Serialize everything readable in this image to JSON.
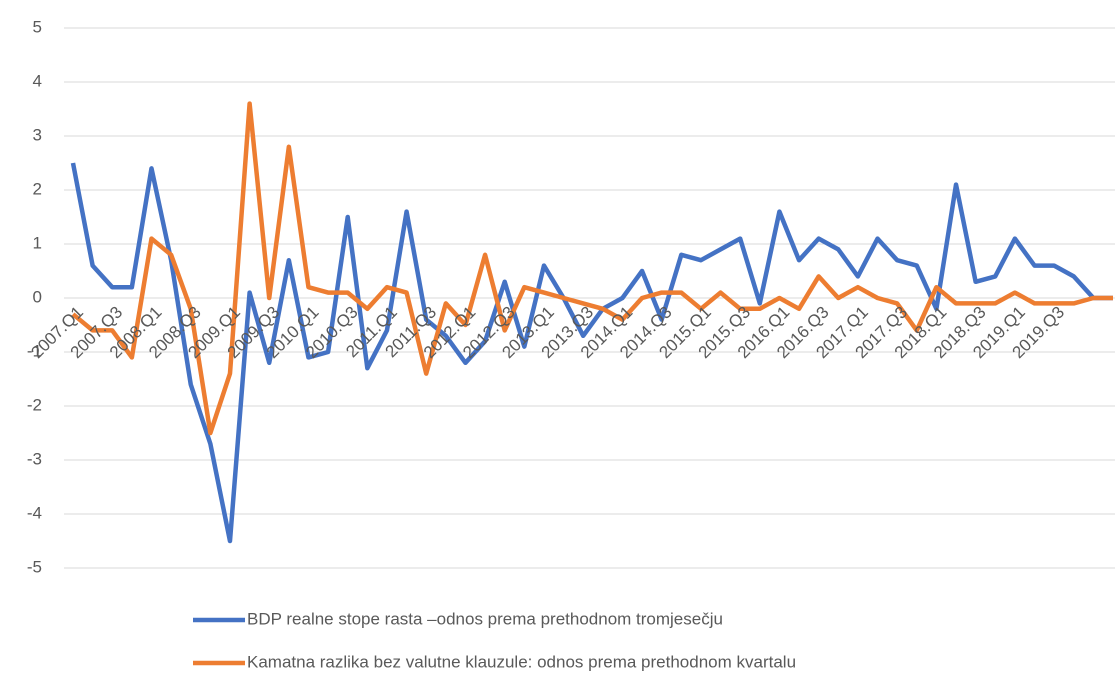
{
  "chart_data": {
    "type": "line",
    "categories": [
      "2007.Q1",
      null,
      "2007.Q3",
      null,
      "2008.Q1",
      null,
      "2008.Q3",
      null,
      "2009.Q1",
      null,
      "2009.Q3",
      null,
      "2010.Q1",
      null,
      "2010.Q3",
      null,
      "2011.Q1",
      null,
      "2011.Q3",
      null,
      "2012.Q1",
      null,
      "2012.Q3",
      null,
      "2013.Q1",
      null,
      "2013.Q3",
      null,
      "2014.Q1",
      null,
      "2014.Q3",
      null,
      "2015.Q1",
      null,
      "2015.Q3",
      null,
      "2016.Q1",
      null,
      "2016.Q3",
      null,
      "2017.Q1",
      null,
      "2017.Q3",
      null,
      "2018.Q1",
      null,
      "2018.Q3",
      null,
      "2019.Q1",
      null,
      "2019.Q3",
      null,
      null,
      null
    ],
    "series": [
      {
        "name": "BDP realne stope rasta –odnos prema prethodnom tromjesečju",
        "color": "#4472c4",
        "values": [
          2.5,
          0.6,
          0.2,
          0.2,
          2.4,
          0.7,
          -1.6,
          -2.7,
          -4.5,
          0.1,
          -1.2,
          0.7,
          -1.1,
          -1.0,
          1.5,
          -1.3,
          -0.6,
          1.6,
          -0.4,
          -0.7,
          -1.2,
          -0.8,
          0.3,
          -0.9,
          0.6,
          0.0,
          -0.7,
          -0.2,
          0.0,
          0.5,
          -0.4,
          0.8,
          0.7,
          0.9,
          1.1,
          -0.1,
          1.6,
          0.7,
          1.1,
          0.9,
          0.4,
          1.1,
          0.7,
          0.6,
          -0.2,
          2.1,
          0.3,
          0.4,
          1.1,
          0.6,
          0.6,
          0.4,
          0.0,
          0.0
        ]
      },
      {
        "name": "Kamatna razlika bez valutne klauzule: odnos prema prethodnom kvartalu",
        "color": "#ed7d31",
        "values": [
          -0.3,
          -0.6,
          -0.6,
          -1.1,
          1.1,
          0.8,
          -0.2,
          -2.5,
          -1.4,
          3.6,
          0.0,
          2.8,
          0.2,
          0.1,
          0.1,
          -0.2,
          0.2,
          0.1,
          -1.4,
          -0.1,
          -0.5,
          0.8,
          -0.6,
          0.2,
          0.1,
          0.0,
          -0.1,
          -0.2,
          -0.4,
          0.0,
          0.1,
          0.1,
          -0.2,
          0.1,
          -0.2,
          -0.2,
          0.0,
          -0.2,
          0.4,
          0.0,
          0.2,
          0.0,
          -0.1,
          -0.6,
          0.2,
          -0.1,
          -0.1,
          -0.1,
          0.1,
          -0.1,
          -0.1,
          -0.1,
          0.0,
          0.0
        ]
      }
    ],
    "ylim": [
      -5,
      5
    ],
    "yticks": [
      -5,
      -4,
      -3,
      -2,
      -1,
      0,
      1,
      2,
      3,
      4,
      5
    ],
    "grid": true,
    "legend": "bottom"
  }
}
